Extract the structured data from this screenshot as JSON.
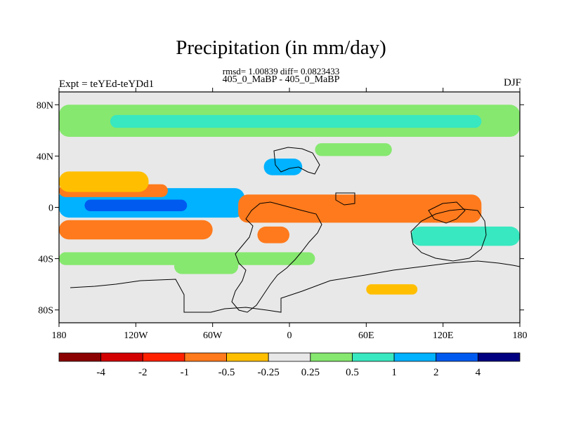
{
  "header": {
    "title": "Precipitation (in mm/day)",
    "stats": "rmsd= 1.00839  diff= 0.0823433",
    "case": "405_0_MaBP - 405_0_MaBP",
    "experiment": "Expt = teYEd-teYDd1",
    "season": "DJF"
  },
  "chart_data": {
    "type": "heatmap",
    "title": "Precipitation (in mm/day)",
    "subtitle": "rmsd= 1.00839  diff= 0.0823433",
    "xlabel": "",
    "ylabel": "",
    "x_ticks": [
      "180",
      "120W",
      "60W",
      "0",
      "60E",
      "120E",
      "180"
    ],
    "y_ticks": [
      "80N",
      "40N",
      "0",
      "40S",
      "80S"
    ],
    "xlim": [
      -180,
      180
    ],
    "ylim": [
      -90,
      90
    ],
    "colorbar": {
      "labels": [
        "-4",
        "-2",
        "-1",
        "-0.5",
        "-0.25",
        "0.25",
        "0.5",
        "1",
        "2",
        "4"
      ],
      "colors": [
        "#8b0000",
        "#d20000",
        "#ff2000",
        "#ff7a1c",
        "#ffbf00",
        "#e8e8e8",
        "#86e86f",
        "#38e8c0",
        "#00b2ff",
        "#005af0",
        "#000080"
      ]
    },
    "bands": [
      {
        "lat": [
          80,
          55
        ],
        "lon": [
          -180,
          180
        ],
        "level": 1
      },
      {
        "lat": [
          72,
          62
        ],
        "lon": [
          -140,
          150
        ],
        "level": 2
      },
      {
        "lat": [
          15,
          -8
        ],
        "lon": [
          -180,
          -35
        ],
        "level": 3
      },
      {
        "lat": [
          6,
          -3
        ],
        "lon": [
          -160,
          -80
        ],
        "level": 4
      },
      {
        "lat": [
          18,
          8
        ],
        "lon": [
          -180,
          -95
        ],
        "level": -2
      },
      {
        "lat": [
          -10,
          -25
        ],
        "lon": [
          -180,
          -60
        ],
        "level": -2
      },
      {
        "lat": [
          10,
          -12
        ],
        "lon": [
          -40,
          150
        ],
        "level": -2
      },
      {
        "lat": [
          28,
          12
        ],
        "lon": [
          -180,
          -110
        ],
        "level": -1
      },
      {
        "lat": [
          -35,
          -45
        ],
        "lon": [
          -180,
          20
        ],
        "level": 1
      },
      {
        "lat": [
          38,
          25
        ],
        "lon": [
          -20,
          10
        ],
        "level": 3
      },
      {
        "lat": [
          -15,
          -30
        ],
        "lon": [
          95,
          180
        ],
        "level": 2
      },
      {
        "lat": [
          -15,
          -28
        ],
        "lon": [
          -25,
          0
        ],
        "level": -2
      },
      {
        "lat": [
          -60,
          -68
        ],
        "lon": [
          60,
          100
        ],
        "level": -1
      },
      {
        "lat": [
          50,
          40
        ],
        "lon": [
          20,
          80
        ],
        "level": 1
      },
      {
        "lat": [
          -40,
          -52
        ],
        "lon": [
          -90,
          -40
        ],
        "level": 1
      }
    ]
  }
}
